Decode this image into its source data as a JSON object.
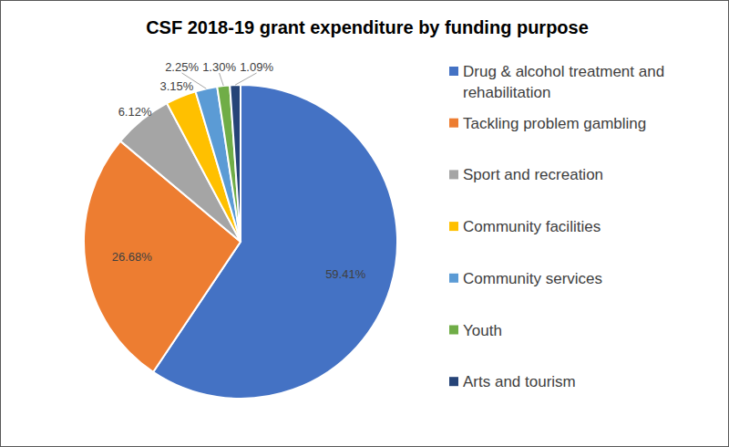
{
  "chart_data": {
    "type": "pie",
    "title": "CSF 2018-19 grant expenditure by funding purpose",
    "categories": [
      "Drug & alcohol treatment and rehabilitation",
      "Tackling problem gambling",
      "Sport and recreation",
      "Community facilities",
      "Community services",
      "Youth",
      "Arts and tourism"
    ],
    "values": [
      59.41,
      26.68,
      6.12,
      3.15,
      2.25,
      1.3,
      1.09
    ],
    "value_labels": [
      "59.41%",
      "26.68%",
      "6.12%",
      "3.15%",
      "2.25%",
      "1.30%",
      "1.09%"
    ],
    "colors": [
      "#4472c4",
      "#ed7d31",
      "#a5a5a5",
      "#ffc000",
      "#5b9bd5",
      "#70ad47",
      "#264478"
    ],
    "data_labels": true,
    "legend": "right"
  }
}
